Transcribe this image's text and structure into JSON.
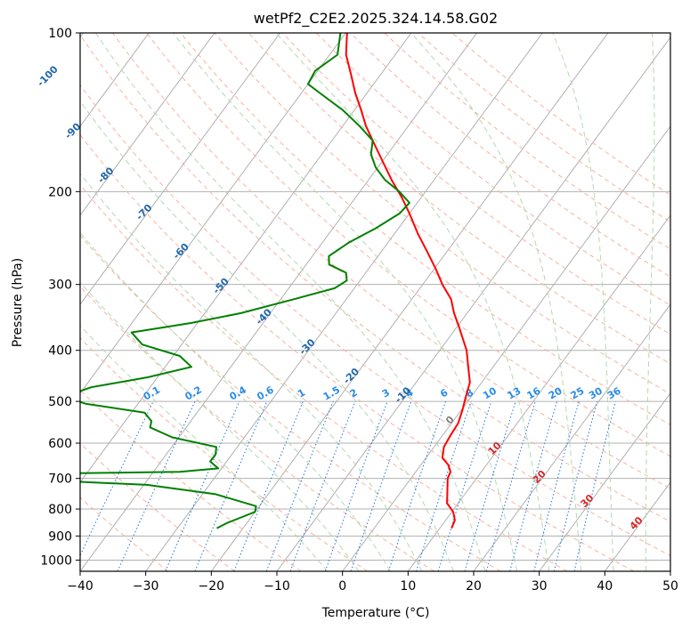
{
  "chart_data": {
    "type": "line",
    "title": "wetPf2_C2E2.2025.324.14.58.G02",
    "xlabel": "Temperature (°C)",
    "ylabel": "Pressure (hPa)",
    "xlim": [
      -40,
      50
    ],
    "ylim": [
      1050,
      100
    ],
    "y_scale": "log",
    "grid": true,
    "x_ticks": [
      "−40",
      "−30",
      "−20",
      "−10",
      "0",
      "10",
      "20",
      "30",
      "40",
      "50"
    ],
    "y_ticks": [
      "100",
      "200",
      "300",
      "400",
      "500",
      "600",
      "700",
      "800",
      "900",
      "1000"
    ],
    "series": [
      {
        "color": "#ff0000",
        "points": [
          [
            100,
            -59.8
          ],
          [
            110,
            -57.5
          ],
          [
            120,
            -54.5
          ],
          [
            130,
            -51.8
          ],
          [
            140,
            -49.0
          ],
          [
            150,
            -46.5
          ],
          [
            160,
            -43.8
          ],
          [
            175,
            -40.0
          ],
          [
            190,
            -36.5
          ],
          [
            205,
            -33.0
          ],
          [
            220,
            -30.0
          ],
          [
            240,
            -26.5
          ],
          [
            260,
            -23.0
          ],
          [
            280,
            -19.8
          ],
          [
            300,
            -17.0
          ],
          [
            320,
            -14.0
          ],
          [
            340,
            -12.0
          ],
          [
            360,
            -9.8
          ],
          [
            380,
            -7.8
          ],
          [
            400,
            -5.9
          ],
          [
            430,
            -3.8
          ],
          [
            460,
            -1.8
          ],
          [
            490,
            -0.8
          ],
          [
            520,
            0.2
          ],
          [
            550,
            1.0
          ],
          [
            580,
            1.2
          ],
          [
            610,
            1.5
          ],
          [
            640,
            2.5
          ],
          [
            660,
            4.2
          ],
          [
            680,
            5.3
          ],
          [
            700,
            5.6
          ],
          [
            740,
            7.0
          ],
          [
            780,
            8.3
          ],
          [
            810,
            10.2
          ],
          [
            840,
            11.4
          ],
          [
            870,
            11.8
          ]
        ]
      },
      {
        "color": "#008000",
        "points": [
          [
            100,
            -60.8
          ],
          [
            110,
            -58.8
          ],
          [
            118,
            -60.4
          ],
          [
            125,
            -60.0
          ],
          [
            130,
            -57.2
          ],
          [
            140,
            -51.8
          ],
          [
            150,
            -47.5
          ],
          [
            160,
            -43.8
          ],
          [
            170,
            -42.5
          ],
          [
            180,
            -40.3
          ],
          [
            190,
            -37.5
          ],
          [
            200,
            -34.0
          ],
          [
            210,
            -31.2
          ],
          [
            220,
            -31.5
          ],
          [
            235,
            -33.5
          ],
          [
            250,
            -36.0
          ],
          [
            265,
            -37.5
          ],
          [
            275,
            -36.5
          ],
          [
            285,
            -33.0
          ],
          [
            295,
            -32.0
          ],
          [
            305,
            -33.0
          ],
          [
            320,
            -38.0
          ],
          [
            340,
            -44.5
          ],
          [
            355,
            -51.0
          ],
          [
            370,
            -59.0
          ],
          [
            390,
            -56.0
          ],
          [
            410,
            -49.0
          ],
          [
            430,
            -46.0
          ],
          [
            450,
            -51.5
          ],
          [
            470,
            -59.0
          ],
          [
            490,
            -62.0
          ],
          [
            505,
            -58.0
          ],
          [
            525,
            -48.0
          ],
          [
            545,
            -46.0
          ],
          [
            560,
            -45.5
          ],
          [
            585,
            -41.0
          ],
          [
            610,
            -33.2
          ],
          [
            630,
            -32.5
          ],
          [
            650,
            -32.5
          ],
          [
            670,
            -30.5
          ],
          [
            680,
            -36.0
          ],
          [
            690,
            -73.0
          ],
          [
            700,
            -62.0
          ],
          [
            720,
            -39.5
          ],
          [
            750,
            -28.0
          ],
          [
            790,
            -20.5
          ],
          [
            810,
            -20.0
          ],
          [
            830,
            -21.5
          ],
          [
            850,
            -23.0
          ],
          [
            870,
            -24.0
          ]
        ]
      }
    ],
    "dry_adiabats": [
      -30,
      -20,
      -10,
      0,
      10,
      20,
      30,
      40,
      50,
      60,
      70,
      80,
      90,
      100,
      110,
      120,
      130,
      140,
      150,
      160,
      170
    ],
    "moist_adiabats": [
      -5,
      0,
      5,
      10,
      15,
      20,
      25,
      30,
      35,
      40,
      45
    ],
    "mixing_ratio_lines": [
      "0.1",
      "0.2",
      "0.4",
      "0.6",
      "1",
      "1.5",
      "2",
      "3",
      "4",
      "6",
      "8",
      "10",
      "13",
      "16",
      "20",
      "25",
      "30",
      "36"
    ],
    "isotherm_labels": [
      "-100",
      "-90",
      "-80",
      "-70",
      "-60",
      "-50",
      "-40",
      "-30",
      "-20",
      "-10",
      "0"
    ],
    "warm_isotherm_labels": [
      "10",
      "20",
      "30",
      "40"
    ]
  }
}
